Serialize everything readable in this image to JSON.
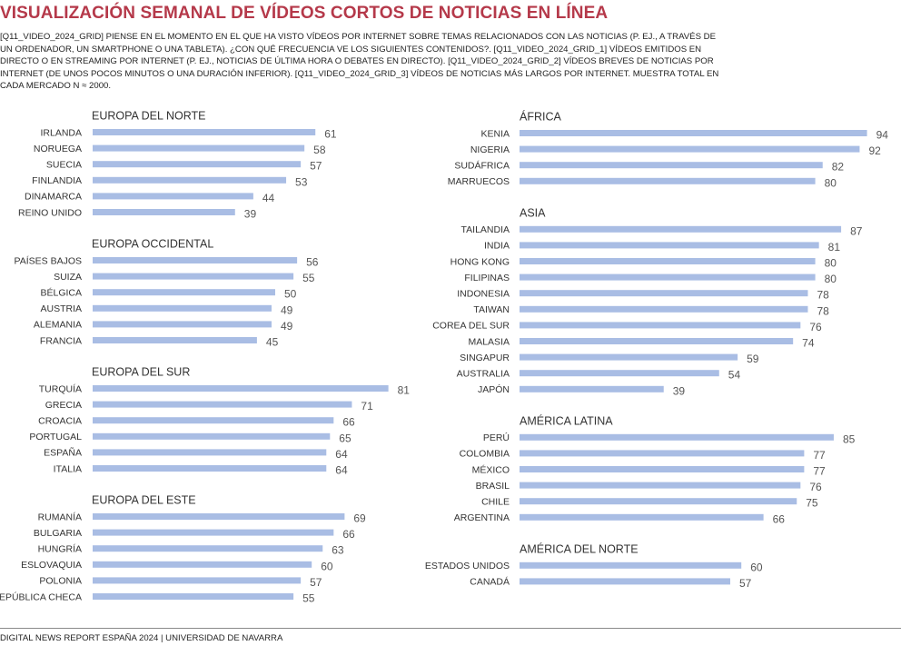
{
  "title": "VISUALIZACIÓN SEMANAL DE VÍDEOS CORTOS DE NOTICIAS EN LÍNEA",
  "subtitle": "[Q11_VIDEO_2024_GRID] PIENSE EN EL MOMENTO EN EL QUE HA VISTO VÍDEOS POR INTERNET SOBRE TEMAS RELACIONADOS CON LAS NOTICIAS (P. EJ., A TRAVÉS DE UN ORDENADOR, UN SMARTPHONE O UNA TABLETA). ¿CON QUÉ FRECUENCIA VE LOS SIGUIENTES CONTENIDOS?. [Q11_VIDEO_2024_GRID_1] VÍDEOS EMITIDOS EN DIRECTO O EN STREAMING POR INTERNET (P. EJ., NOTICIAS DE ÚLTIMA HORA O DEBATES EN DIRECTO). [Q11_VIDEO_2024_GRID_2] VÍDEOS BREVES DE NOTICIAS POR INTERNET (DE UNOS POCOS MINUTOS O UNA DURACIÓN INFERIOR). [Q11_VIDEO_2024_GRID_3] VÍDEOS DE NOTICIAS MÁS LARGOS POR INTERNET. MUESTRA TOTAL EN CADA MERCADO N ≈ 2000.",
  "footer": "DIGITAL NEWS REPORT ESPAÑA 2024 | UNIVERSIDAD DE NAVARRA",
  "colors": {
    "bar": "#a9bde4",
    "title": "#b5394a"
  },
  "chart_data": {
    "type": "bar",
    "orientation": "horizontal",
    "xlim": [
      0,
      100
    ],
    "groups": [
      {
        "name": "EUROPA DEL NORTE",
        "column": "left",
        "categories": [
          "IRLANDA",
          "NORUEGA",
          "SUECIA",
          "FINLANDIA",
          "DINAMARCA",
          "REINO UNIDO"
        ],
        "values": [
          61,
          58,
          57,
          53,
          44,
          39
        ]
      },
      {
        "name": "EUROPA OCCIDENTAL",
        "column": "left",
        "categories": [
          "PAÍSES BAJOS",
          "SUIZA",
          "BÉLGICA",
          "AUSTRIA",
          "ALEMANIA",
          "FRANCIA"
        ],
        "values": [
          56,
          55,
          50,
          49,
          49,
          45
        ]
      },
      {
        "name": "EUROPA DEL SUR",
        "column": "left",
        "categories": [
          "TURQUÍA",
          "GRECIA",
          "CROACIA",
          "PORTUGAL",
          "ESPAÑA",
          "ITALIA"
        ],
        "values": [
          81,
          71,
          66,
          65,
          64,
          64
        ]
      },
      {
        "name": "EUROPA DEL ESTE",
        "column": "left",
        "categories": [
          "RUMANÍA",
          "BULGARIA",
          "HUNGRÍA",
          "ESLOVAQUIA",
          "POLONIA",
          "REPÚBLICA CHECA"
        ],
        "values": [
          69,
          66,
          63,
          60,
          57,
          55
        ]
      },
      {
        "name": "ÁFRICA",
        "column": "right",
        "categories": [
          "KENIA",
          "NIGERIA",
          "SUDÁFRICA",
          "MARRUECOS"
        ],
        "values": [
          94,
          92,
          82,
          80
        ]
      },
      {
        "name": "ASIA",
        "column": "right",
        "categories": [
          "TAILANDIA",
          "INDIA",
          "HONG KONG",
          "FILIPINAS",
          "INDONESIA",
          "TAIWAN",
          "COREA DEL SUR",
          "MALASIA",
          "SINGAPUR",
          "AUSTRALIA",
          "JAPÓN"
        ],
        "values": [
          87,
          81,
          80,
          80,
          78,
          78,
          76,
          74,
          59,
          54,
          39
        ]
      },
      {
        "name": "AMÉRICA LATINA",
        "column": "right",
        "categories": [
          "PERÚ",
          "COLOMBIA",
          "MÉXICO",
          "BRASIL",
          "CHILE",
          "ARGENTINA"
        ],
        "values": [
          85,
          77,
          77,
          76,
          75,
          66
        ]
      },
      {
        "name": "AMÉRICA DEL NORTE",
        "column": "right",
        "categories": [
          "ESTADOS UNIDOS",
          "CANADÁ"
        ],
        "values": [
          60,
          57
        ]
      }
    ]
  }
}
